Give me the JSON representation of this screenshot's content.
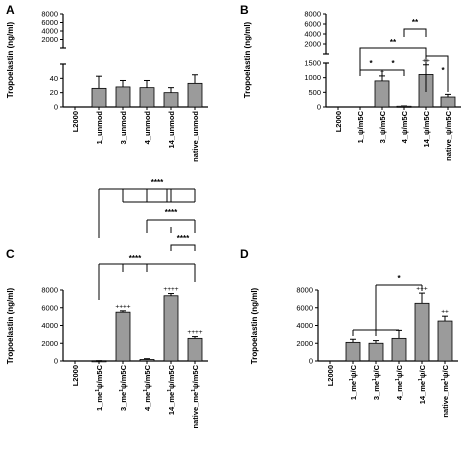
{
  "chart_data": [
    {
      "panel": "A",
      "type": "bar",
      "ylabel": "Tropoelastin (ng/ml)",
      "categories": [
        "L2000",
        "1_unmod",
        "3_unmod",
        "4_unmod",
        "14_unmod",
        "native_unmod"
      ],
      "values": [
        0,
        26,
        28,
        27,
        20,
        33
      ],
      "errors": [
        0,
        17,
        9,
        10,
        7,
        12
      ],
      "y_axis_broken": true,
      "y_lower_ticks": [
        "0",
        "20",
        "40"
      ],
      "y_upper_ticks": [
        "2000",
        "4000",
        "6000",
        "8000"
      ],
      "ylim_lower": [
        0,
        60
      ],
      "ylim_upper": [
        0,
        8000
      ],
      "plus_marks": [
        "",
        "",
        "",
        "",
        "",
        ""
      ],
      "significance": []
    },
    {
      "panel": "B",
      "type": "bar",
      "ylabel": "Tropoelastin (ng/ml)",
      "categories": [
        "L2000",
        "1_ψ/m5C",
        "3_ψ/m5C",
        "4_ψ/m5C",
        "14_ψ/m5C",
        "native_ψ/m5C"
      ],
      "values": [
        0,
        0,
        890,
        25,
        1110,
        340
      ],
      "errors": [
        0,
        0,
        170,
        10,
        330,
        90
      ],
      "y_axis_broken": true,
      "y_lower_ticks": [
        "0",
        "500",
        "1000",
        "1500"
      ],
      "y_upper_ticks": [
        "2000",
        "4000",
        "6000",
        "8000"
      ],
      "ylim_lower": [
        0,
        1500
      ],
      "ylim_upper": [
        0,
        8000
      ],
      "plus_marks": [
        "",
        "",
        "+",
        "",
        "++",
        ""
      ],
      "significance": [
        "*",
        "*",
        "**",
        "**",
        "*"
      ]
    },
    {
      "panel": "C",
      "type": "bar",
      "ylabel": "Tropoelastin (ng/ml)",
      "categories": [
        "L2000",
        "1_me1ψ/m5C",
        "3_me1ψ/m5C",
        "4_me1ψ/m5C",
        "14_me1ψ/m5C",
        "native_me1ψ/m5C"
      ],
      "values": [
        0,
        20,
        5500,
        170,
        7350,
        2550
      ],
      "errors": [
        0,
        10,
        150,
        90,
        250,
        200
      ],
      "y_ticks": [
        "0",
        "2000",
        "4000",
        "6000",
        "8000"
      ],
      "ylim": [
        0,
        8000
      ],
      "plus_marks": [
        "",
        "",
        "++++",
        "",
        "++++",
        "++++"
      ],
      "significance": [
        "****",
        "****",
        "****",
        "****"
      ]
    },
    {
      "panel": "D",
      "type": "bar",
      "ylabel": "Tropoelastin (ng/ml)",
      "categories": [
        "L2000",
        "1_me1ψ/C",
        "3_me1ψ/C",
        "4_me1ψ/C",
        "14_me1ψ/C",
        "native_me1ψ/C"
      ],
      "values": [
        0,
        2100,
        2000,
        2550,
        6500,
        4500
      ],
      "errors": [
        0,
        350,
        300,
        900,
        1150,
        550
      ],
      "y_ticks": [
        "0",
        "2000",
        "4000",
        "6000",
        "8000"
      ],
      "ylim": [
        0,
        8000
      ],
      "plus_marks": [
        "",
        "",
        "",
        "",
        "+++",
        "++"
      ],
      "significance": [
        "*"
      ]
    }
  ]
}
